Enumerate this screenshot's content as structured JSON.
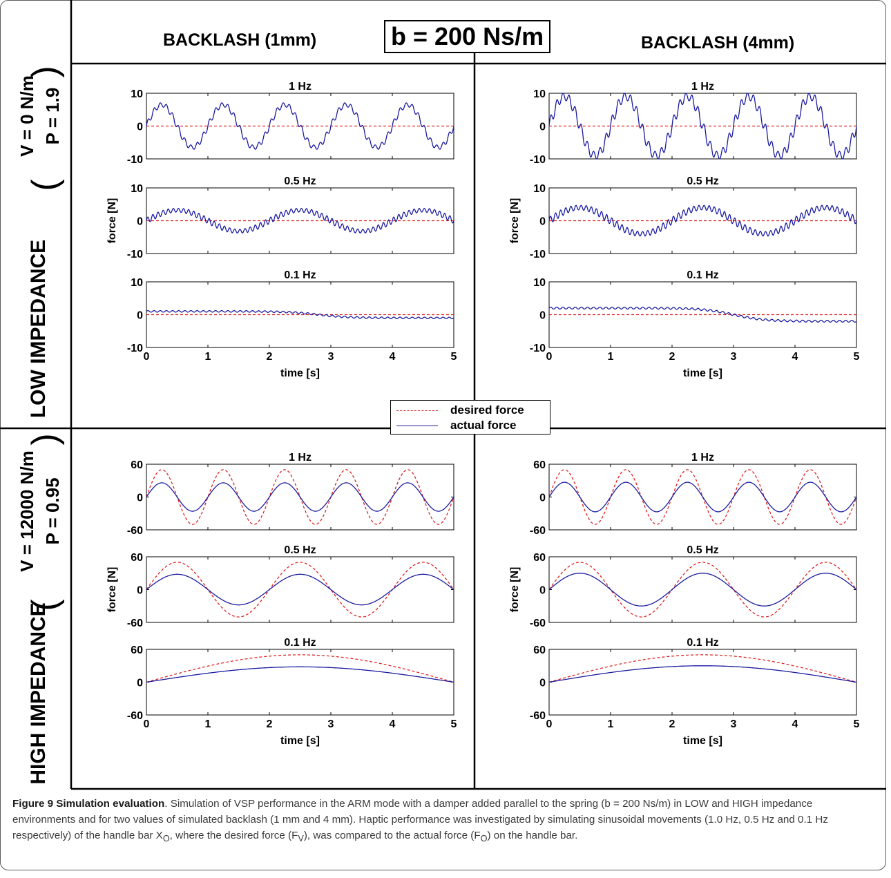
{
  "header": {
    "col_left": "BACKLASH  (1mm)",
    "col_right": "BACKLASH  (4mm)",
    "center_box": "b = 200 Ns/m"
  },
  "rows": {
    "low": {
      "label": "LOW IMPEDANCE",
      "param_v": "V = 0 N/m",
      "param_p": "P = 1.9"
    },
    "high": {
      "label": "HIGH IMPEDANCE",
      "param_v": "V = 12000 N/m",
      "param_p": "P = 0.95"
    }
  },
  "legend": {
    "desired": "desired force",
    "actual": "actual force"
  },
  "colors": {
    "desired": "#e02020",
    "actual": "#1a1aa0"
  },
  "axis_labels": {
    "y": "force [N]",
    "x": "time [s]"
  },
  "x_ticks": [
    "0",
    "1",
    "2",
    "3",
    "4",
    "5"
  ],
  "y_ticks_low": [
    "10",
    "0",
    "-10"
  ],
  "y_ticks_high": [
    "60",
    "0",
    "-60"
  ],
  "caption": {
    "title": "Figure 9 Simulation evaluation",
    "text": ". Simulation of VSP performance in the ARM mode with a damper added parallel to the spring (b = 200 Ns/m) in LOW and HIGH impedance environments and for two values of simulated backlash (1 mm and 4 mm). Haptic performance was investigated by simulating sinusoidal movements (1.0 Hz, 0.5 Hz and 0.1 Hz respectively) of the handle bar X",
    "sub_o": "O",
    "text2": ", where the desired force (F",
    "sub_v": "V",
    "text3": "), was compared to the actual force (F",
    "sub_o2": "O",
    "text4": ") on the handle bar."
  },
  "chart_data": [
    {
      "type": "line",
      "title": "1 Hz",
      "xlabel": "",
      "ylabel": "",
      "xlim": [
        0,
        5
      ],
      "ylim": [
        -10,
        10
      ],
      "series": [
        {
          "name": "desired force",
          "kind": "desired",
          "amp": 0,
          "freq": 1
        },
        {
          "name": "actual force",
          "kind": "actual",
          "amp": 6.5,
          "freq": 1,
          "ripple": 1.0,
          "ripple_freq": 10
        }
      ]
    },
    {
      "type": "line",
      "title": "0.5 Hz",
      "xlabel": "",
      "ylabel": "force [N]",
      "xlim": [
        0,
        5
      ],
      "ylim": [
        -10,
        10
      ],
      "series": [
        {
          "name": "desired force",
          "kind": "desired",
          "amp": 0,
          "freq": 0.5
        },
        {
          "name": "actual force",
          "kind": "actual",
          "amp": 3.2,
          "freq": 0.5,
          "ripple": 0.9,
          "ripple_freq": 12
        }
      ]
    },
    {
      "type": "line",
      "title": "0.1 Hz",
      "xlabel": "time [s]",
      "ylabel": "",
      "xlim": [
        0,
        5
      ],
      "ylim": [
        -10,
        10
      ],
      "series": [
        {
          "name": "desired force",
          "kind": "desired",
          "amp": 0,
          "freq": 0.1
        },
        {
          "name": "actual force",
          "kind": "actual",
          "amp": 1,
          "freq": 0.1,
          "ripple": 0.25,
          "ripple_freq": 10,
          "shape": "step",
          "step_at": 2.8
        }
      ]
    },
    {
      "type": "line",
      "title": "1 Hz",
      "xlabel": "",
      "ylabel": "",
      "xlim": [
        0,
        5
      ],
      "ylim": [
        -10,
        10
      ],
      "series": [
        {
          "name": "desired force",
          "kind": "desired",
          "amp": 0,
          "freq": 1
        },
        {
          "name": "actual force",
          "kind": "actual",
          "amp": 9,
          "freq": 1,
          "ripple": 1.8,
          "ripple_freq": 10
        }
      ]
    },
    {
      "type": "line",
      "title": "0.5 Hz",
      "xlabel": "",
      "ylabel": "force [N]",
      "xlim": [
        0,
        5
      ],
      "ylim": [
        -10,
        10
      ],
      "series": [
        {
          "name": "desired force",
          "kind": "desired",
          "amp": 0,
          "freq": 0.5
        },
        {
          "name": "actual force",
          "kind": "actual",
          "amp": 4,
          "freq": 0.5,
          "ripple": 1.1,
          "ripple_freq": 12
        }
      ]
    },
    {
      "type": "line",
      "title": "0.1 Hz",
      "xlabel": "time [s]",
      "ylabel": "",
      "xlim": [
        0,
        5
      ],
      "ylim": [
        -10,
        10
      ],
      "series": [
        {
          "name": "desired force",
          "kind": "desired",
          "amp": 0,
          "freq": 0.1
        },
        {
          "name": "actual force",
          "kind": "actual",
          "amp": 2,
          "freq": 0.1,
          "ripple": 0.3,
          "ripple_freq": 10,
          "shape": "step",
          "step_at": 3.0
        }
      ]
    },
    {
      "type": "line",
      "title": "1 Hz",
      "xlabel": "",
      "ylabel": "",
      "xlim": [
        0,
        5
      ],
      "ylim": [
        -60,
        60
      ],
      "series": [
        {
          "name": "desired force",
          "kind": "desired",
          "amp": 50,
          "freq": 1
        },
        {
          "name": "actual force",
          "kind": "actual",
          "amp": 26,
          "freq": 1
        }
      ]
    },
    {
      "type": "line",
      "title": "0.5 Hz",
      "xlabel": "",
      "ylabel": "force [N]",
      "xlim": [
        0,
        5
      ],
      "ylim": [
        -60,
        60
      ],
      "series": [
        {
          "name": "desired force",
          "kind": "desired",
          "amp": 50,
          "freq": 0.5
        },
        {
          "name": "actual force",
          "kind": "actual",
          "amp": 28,
          "freq": 0.5
        }
      ]
    },
    {
      "type": "line",
      "title": "0.1 Hz",
      "xlabel": "time [s]",
      "ylabel": "",
      "xlim": [
        0,
        5
      ],
      "ylim": [
        -60,
        60
      ],
      "series": [
        {
          "name": "desired force",
          "kind": "desired",
          "amp": 50,
          "freq": 0.1
        },
        {
          "name": "actual force",
          "kind": "actual",
          "amp": 28,
          "freq": 0.1
        }
      ]
    },
    {
      "type": "line",
      "title": "1 Hz",
      "xlabel": "",
      "ylabel": "",
      "xlim": [
        0,
        5
      ],
      "ylim": [
        -60,
        60
      ],
      "series": [
        {
          "name": "desired force",
          "kind": "desired",
          "amp": 50,
          "freq": 1
        },
        {
          "name": "actual force",
          "kind": "actual",
          "amp": 27,
          "freq": 1
        }
      ]
    },
    {
      "type": "line",
      "title": "0.5 Hz",
      "xlabel": "",
      "ylabel": "force [N]",
      "xlim": [
        0,
        5
      ],
      "ylim": [
        -60,
        60
      ],
      "series": [
        {
          "name": "desired force",
          "kind": "desired",
          "amp": 50,
          "freq": 0.5
        },
        {
          "name": "actual force",
          "kind": "actual",
          "amp": 30,
          "freq": 0.5
        }
      ]
    },
    {
      "type": "line",
      "title": "0.1 Hz",
      "xlabel": "time [s]",
      "ylabel": "",
      "xlim": [
        0,
        5
      ],
      "ylim": [
        -60,
        60
      ],
      "series": [
        {
          "name": "desired force",
          "kind": "desired",
          "amp": 50,
          "freq": 0.1
        },
        {
          "name": "actual force",
          "kind": "actual",
          "amp": 30,
          "freq": 0.1
        }
      ]
    }
  ]
}
